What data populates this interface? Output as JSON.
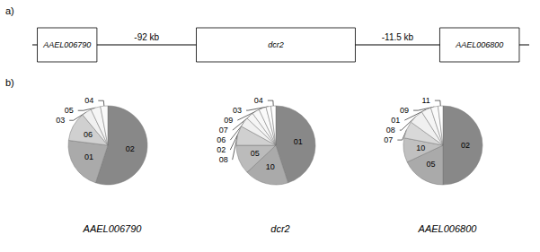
{
  "chart_data": [
    {
      "type": "diagram",
      "title": "a)",
      "categories": [
        "AAEL006790",
        "dcr2",
        "AAEL006800"
      ],
      "annotations": [
        "-92 kb",
        "-11.5 kb"
      ]
    },
    {
      "type": "pie",
      "title": "AAEL006790",
      "annotations": [
        "b)"
      ],
      "categories": [
        "02",
        "01",
        "06",
        "03",
        "05",
        "04"
      ],
      "values": [
        55,
        22,
        12,
        4,
        4,
        3
      ],
      "colors": [
        "#888888",
        "#aaaaaa",
        "#d0d0d0",
        "#f0f0f0",
        "#f5f5f5",
        "#fafafa"
      ]
    },
    {
      "type": "pie",
      "title": "dcr2",
      "categories": [
        "01",
        "10",
        "05",
        "08",
        "02",
        "06",
        "07",
        "09",
        "03",
        "04"
      ],
      "values": [
        45,
        18,
        12,
        8,
        4,
        3,
        3,
        3,
        2,
        2
      ],
      "colors": [
        "#888888",
        "#aaaaaa",
        "#bbbbbb",
        "#d0d0d0",
        "#f0f0f0",
        "#f5f5f5",
        "#f8f8f8",
        "#fafafa",
        "#fcfcfc",
        "#ffffff"
      ]
    },
    {
      "type": "pie",
      "title": "AAEL006800",
      "categories": [
        "02",
        "05",
        "10",
        "07",
        "08",
        "01",
        "09",
        "11"
      ],
      "values": [
        50,
        18,
        10,
        7,
        6,
        4,
        3,
        2
      ],
      "colors": [
        "#888888",
        "#aaaaaa",
        "#c0c0c0",
        "#d8d8d8",
        "#f0f0f0",
        "#f5f5f5",
        "#fafafa",
        "#ffffff"
      ]
    }
  ]
}
